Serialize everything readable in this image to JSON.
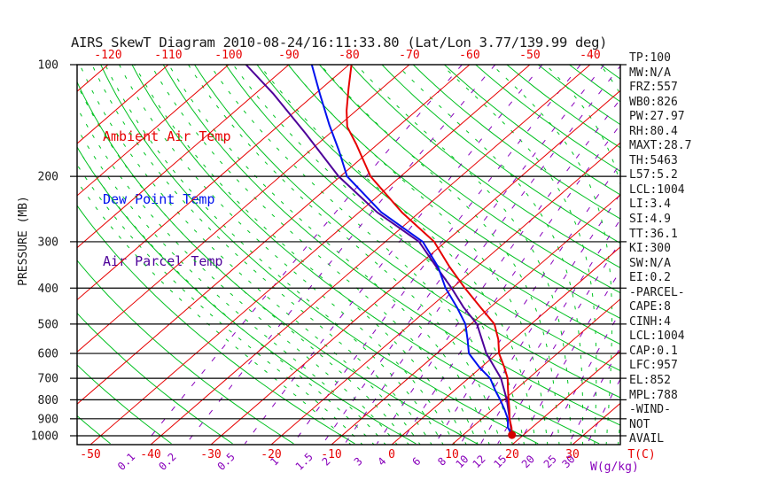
{
  "title": "AIRS SkewT Diagram 2010-08-24/16:11:33.80 (Lat/Lon 3.77/139.99 deg)",
  "colors": {
    "temp": "#e60000",
    "dewpoint": "#0011ee",
    "parcel": "#4d0099",
    "isotherm": "#e60000",
    "dry_adiabat": "#00c020",
    "moist_adiabat": "#00c422",
    "mixing_ratio": "#8800bb",
    "axis": "#000000",
    "marker": "#d40000"
  },
  "legend": [
    {
      "label": "Ambient Air Temp",
      "color_key": "temp"
    },
    {
      "label": "Dew Point Temp",
      "color_key": "dewpoint"
    },
    {
      "label": "Air Parcel Temp",
      "color_key": "parcel"
    }
  ],
  "stats": [
    "TP:100",
    "MW:N/A",
    "FRZ:557",
    "WB0:826",
    "PW:27.97",
    "RH:80.4",
    "MAXT:28.7",
    "TH:5463",
    "L57:5.2",
    "LCL:1004",
    "LI:3.4",
    "SI:4.9",
    "TT:36.1",
    "KI:300",
    "SW:N/A",
    "EI:0.2",
    "-PARCEL-",
    "CAPE:8",
    "CINH:4",
    "LCL:1004",
    "CAP:0.1",
    "LFC:957",
    "EL:852",
    "MPL:788",
    "-WIND-",
    "NOT",
    "AVAIL"
  ],
  "axes": {
    "pressure_label": "PRESSURE (MB)",
    "pressure_ticks": [
      100,
      200,
      300,
      400,
      500,
      600,
      700,
      800,
      900,
      1000
    ],
    "top_temp_ticks": [
      -120,
      -110,
      -100,
      -90,
      -80,
      -70,
      -60,
      -50,
      -40
    ],
    "bottom_temp_ticks": [
      -50,
      -40,
      -30,
      -20,
      -10,
      0,
      10,
      20,
      30
    ],
    "temp_unit": "T(C)",
    "mixing_unit": "W(g/kg)",
    "mixing_ratio_ticks": [
      0.1,
      0.2,
      0.5,
      1,
      1.5,
      2,
      3,
      4,
      6,
      8,
      10,
      12,
      15,
      20,
      25,
      30
    ]
  },
  "chart_data": {
    "type": "line",
    "title": "AIRS SkewT Diagram 2010-08-24/16:11:33.80 (Lat/Lon 3.77/139.99 deg)",
    "x_axis": {
      "label": "T(C)",
      "skewed": true,
      "labels_at_top_mb100_c": [
        -120,
        -40
      ],
      "labels_at_bottom_c": [
        -50,
        30
      ]
    },
    "y_axis": {
      "label": "PRESSURE (MB)",
      "scale": "log",
      "range_mb": [
        100,
        1050
      ]
    },
    "grid": {
      "isotherms_c": {
        "min": -120,
        "max": 30,
        "step": 10
      },
      "dry_adiabats_theta_c": {
        "min": -60,
        "max": 190,
        "step": 10
      },
      "moist_adiabats_thetaw_c": {
        "min": -10,
        "max": 44,
        "step": 2
      },
      "mixing_ratio_g_kg": [
        0.1,
        0.2,
        0.5,
        1,
        1.5,
        2,
        3,
        4,
        6,
        8,
        10,
        12,
        15,
        20,
        25,
        30
      ]
    },
    "series": [
      {
        "name": "Ambient Air Temp",
        "color_key": "temp",
        "points_p_t": [
          [
            100,
            -79.6
          ],
          [
            116,
            -75.5
          ],
          [
            133,
            -71.6
          ],
          [
            147,
            -68.4
          ],
          [
            164,
            -63.5
          ],
          [
            200,
            -55.0
          ],
          [
            250,
            -42.9
          ],
          [
            300,
            -31.9
          ],
          [
            350,
            -24.6
          ],
          [
            400,
            -17.9
          ],
          [
            450,
            -11.7
          ],
          [
            500,
            -6.1
          ],
          [
            550,
            -2.5
          ],
          [
            600,
            0.3
          ],
          [
            650,
            3.6
          ],
          [
            700,
            6.5
          ],
          [
            750,
            8.7
          ],
          [
            800,
            10.8
          ],
          [
            850,
            12.8
          ],
          [
            900,
            14.6
          ],
          [
            950,
            16.6
          ],
          [
            995,
            18.1
          ]
        ]
      },
      {
        "name": "Dew Point Temp",
        "color_key": "dewpoint",
        "points_p_t": [
          [
            100,
            -86.2
          ],
          [
            120,
            -79.2
          ],
          [
            145,
            -71.8
          ],
          [
            170,
            -65.3
          ],
          [
            200,
            -58.9
          ],
          [
            250,
            -46.3
          ],
          [
            300,
            -33.8
          ],
          [
            350,
            -26.5
          ],
          [
            400,
            -21.1
          ],
          [
            450,
            -15.6
          ],
          [
            500,
            -10.9
          ],
          [
            550,
            -7.6
          ],
          [
            600,
            -4.7
          ],
          [
            655,
            -0.2
          ],
          [
            700,
            3.6
          ],
          [
            755,
            6.8
          ],
          [
            800,
            9.4
          ],
          [
            850,
            12.0
          ],
          [
            900,
            14.3
          ],
          [
            950,
            16.0
          ],
          [
            995,
            18.1
          ]
        ]
      },
      {
        "name": "Air Parcel Temp",
        "color_key": "parcel",
        "points_p_t": [
          [
            100,
            -97.1
          ],
          [
            120,
            -86.9
          ],
          [
            153,
            -74.1
          ],
          [
            200,
            -60.3
          ],
          [
            250,
            -47.0
          ],
          [
            300,
            -34.4
          ],
          [
            350,
            -26.8
          ],
          [
            400,
            -20.1
          ],
          [
            450,
            -14.5
          ],
          [
            500,
            -9.0
          ],
          [
            600,
            -1.8
          ],
          [
            700,
            5.4
          ],
          [
            800,
            10.5
          ],
          [
            900,
            14.6
          ],
          [
            995,
            18.1
          ]
        ]
      }
    ],
    "surface_point": {
      "p": 995,
      "t": 18.1
    }
  }
}
